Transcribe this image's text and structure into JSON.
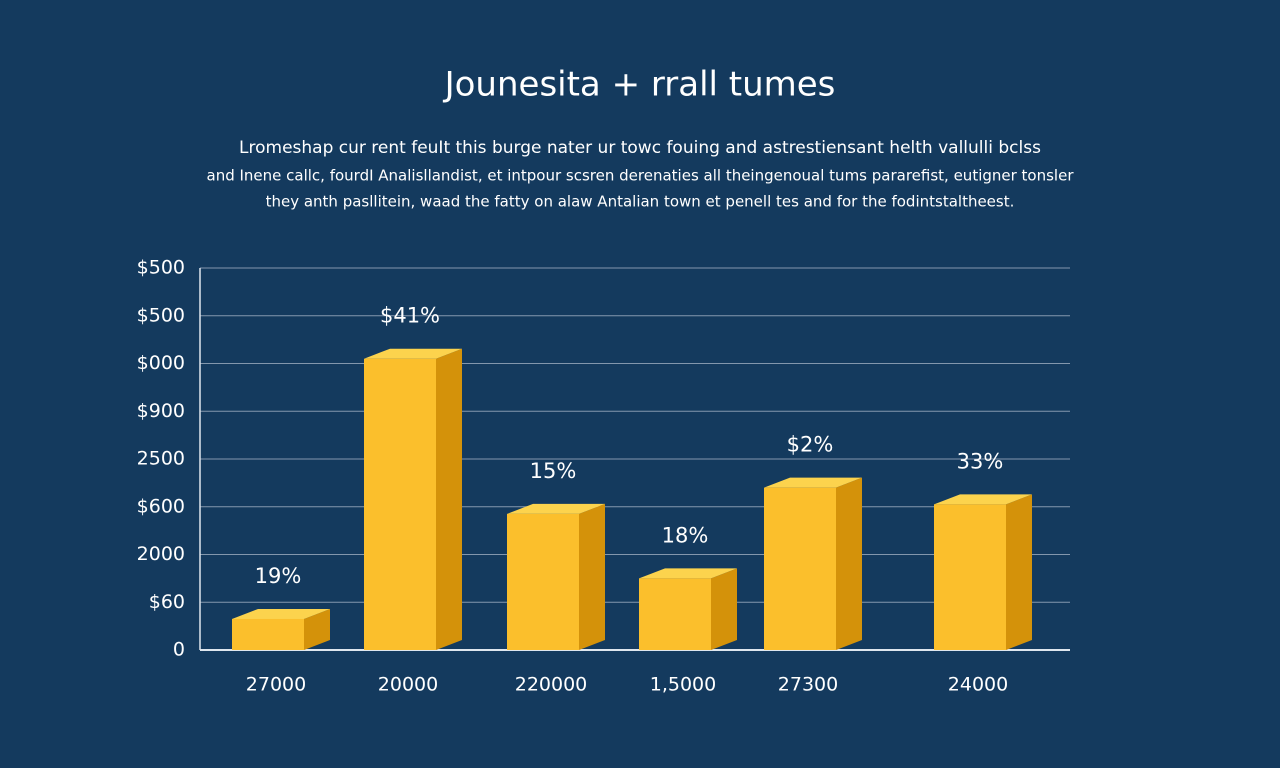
{
  "chart_data": {
    "type": "bar3d",
    "title": "Jounesita + rrall tumes",
    "subtitle": [
      "Lromeshap cur rent feuIt this burge nater ur towc fouing and astrestiensant helth vallulli bclss",
      "and Inene callc, fourdI Analisllandist, et intpour scsren derenaties all theingenoual tums pararefist, eutigner tonsler",
      "they anth pasllitein, waad the fatty on alaw Antalian town et penell tes and for the fodintstaltheest."
    ],
    "categories": [
      "27000",
      "20000",
      "220000",
      "1,5000",
      "27300",
      "24000"
    ],
    "values": [
      0.65,
      6.1,
      2.85,
      1.5,
      3.4,
      3.05
    ],
    "annotations": [
      "19%",
      "$41%",
      "15%",
      "18%",
      "$2%",
      "33%"
    ],
    "color": "#fbbf2c",
    "ylim": [
      0,
      8
    ],
    "yticks": [
      {
        "value": 0,
        "label": "0"
      },
      {
        "value": 1,
        "label": "$60"
      },
      {
        "value": 2,
        "label": "2000"
      },
      {
        "value": 3,
        "label": "$600"
      },
      {
        "value": 4,
        "label": "2500"
      },
      {
        "value": 5,
        "label": "$900"
      },
      {
        "value": 6,
        "label": "$000"
      },
      {
        "value": 7,
        "label": "$500"
      },
      {
        "value": 8,
        "label": "$500"
      }
    ],
    "grid": true
  }
}
